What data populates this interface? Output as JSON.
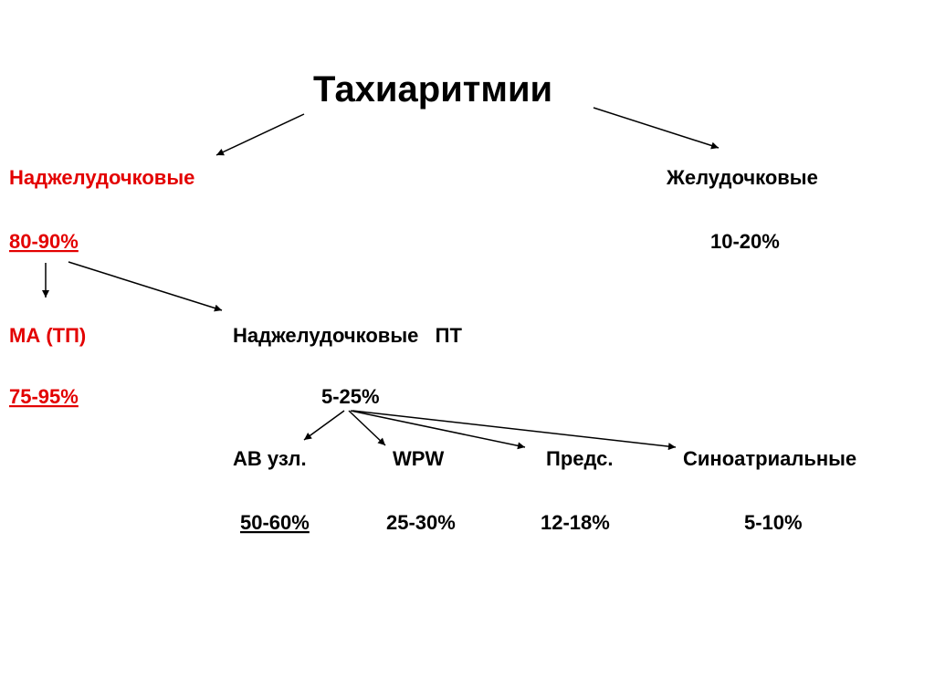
{
  "title": "Тахиаритмии",
  "nodes": [
    {
      "label": "Наджелудочковые",
      "share": "80-90%"
    },
    {
      "label": "Желудочковые",
      "share": "10-20%"
    },
    {
      "label": "МА (ТП)",
      "share": "75-95%"
    },
    {
      "label": "Наджелудочковые   ПТ",
      "share": "5-25%"
    },
    {
      "label": "АВ узл.",
      "share": "50-60%"
    },
    {
      "label": "WPW",
      "share": "25-30%"
    },
    {
      "label": "Предс.",
      "share": "12-18%"
    },
    {
      "label": "Синоатриальные",
      "share": "5-10%"
    }
  ]
}
